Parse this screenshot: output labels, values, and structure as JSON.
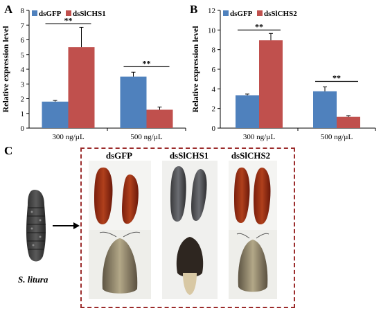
{
  "panels": {
    "a": {
      "letter": "A"
    },
    "b": {
      "letter": "B"
    },
    "c": {
      "letter": "C"
    }
  },
  "chart_data": [
    {
      "type": "bar",
      "ylabel": "Relative expression level",
      "ylim": [
        0,
        8
      ],
      "yticks": [
        0,
        1,
        2,
        3,
        4,
        5,
        6,
        7,
        8
      ],
      "categories": [
        "300 ng/µL",
        "500 ng/µL"
      ],
      "series": [
        {
          "name": "dsGFP",
          "color": "#4F81BD",
          "values": [
            1.8,
            3.5
          ],
          "errors": [
            0.08,
            0.3
          ]
        },
        {
          "name": "dsSlCHS1",
          "color": "#C0504D",
          "values": [
            5.5,
            1.25
          ],
          "errors": [
            1.35,
            0.18
          ]
        }
      ],
      "significance": [
        "**",
        "**"
      ],
      "legend": "top-left",
      "grid": false
    },
    {
      "type": "bar",
      "ylabel": "Relative expression level",
      "ylim": [
        0,
        12
      ],
      "yticks": [
        0,
        2,
        4,
        6,
        8,
        10,
        12
      ],
      "categories": [
        "300 ng/µL",
        "500 ng/µL"
      ],
      "series": [
        {
          "name": "dsGFP",
          "color": "#4F81BD",
          "values": [
            3.35,
            3.75
          ],
          "errors": [
            0.12,
            0.45
          ]
        },
        {
          "name": "dsSlCHS2",
          "color": "#C0504D",
          "values": [
            8.95,
            1.15
          ],
          "errors": [
            0.7,
            0.12
          ]
        }
      ],
      "significance": [
        "**",
        "**"
      ],
      "legend": "top-left",
      "grid": false
    }
  ],
  "photo_panel": {
    "species_label": "S. litura",
    "groups": [
      {
        "label": "dsGFP"
      },
      {
        "label": "dsSlCHS1"
      },
      {
        "label": "dsSlCHS2"
      }
    ]
  }
}
